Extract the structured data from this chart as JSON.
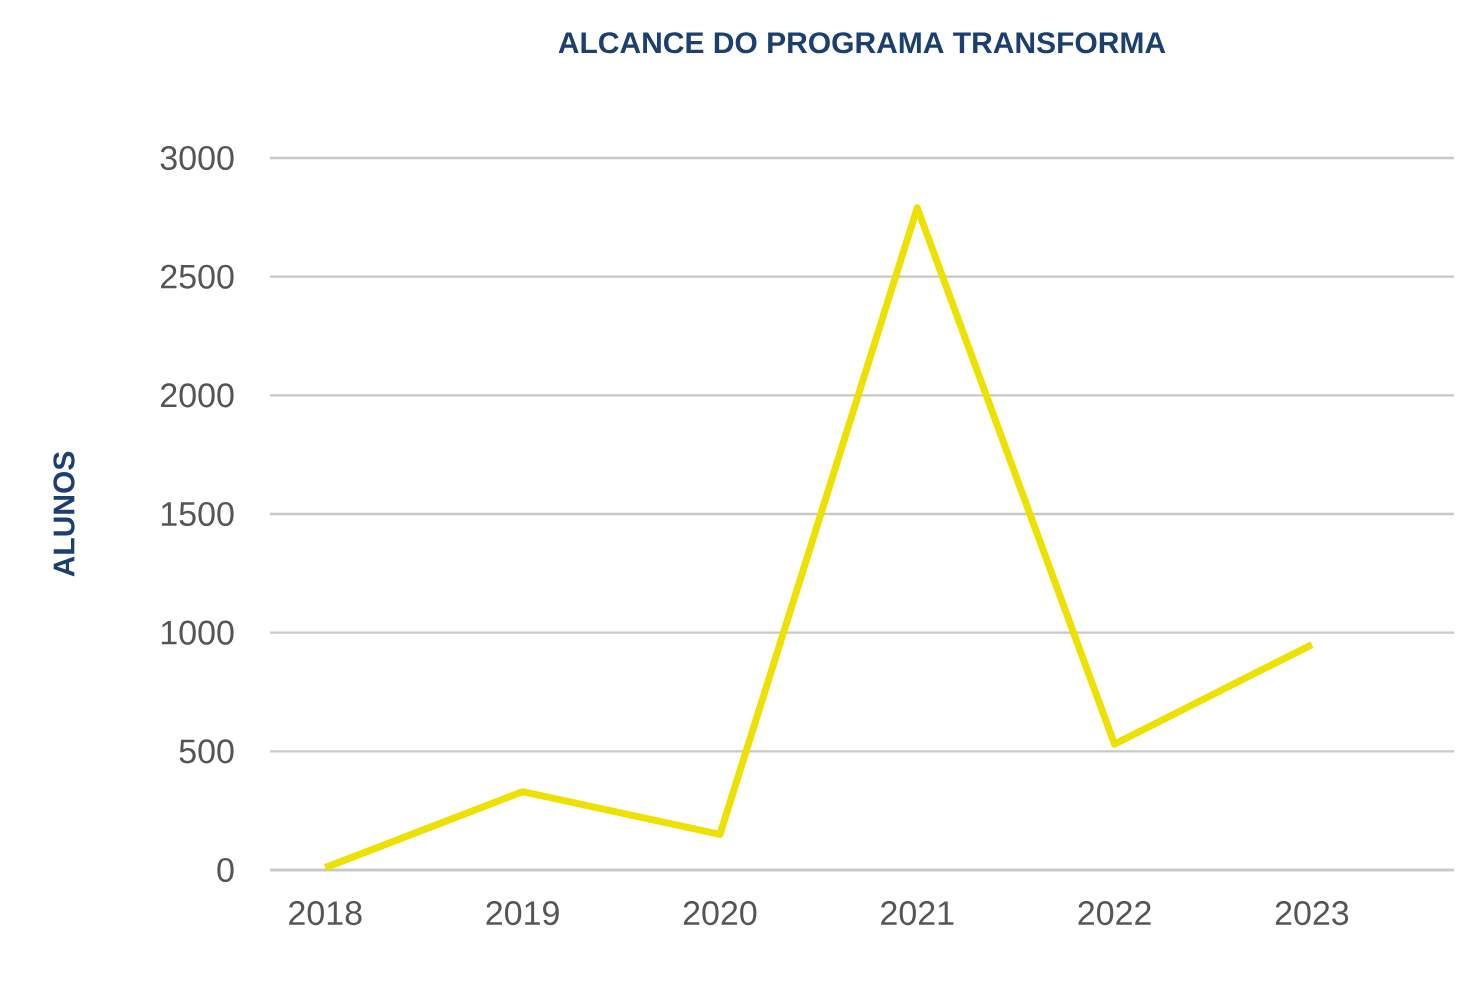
{
  "chart_data": {
    "type": "line",
    "title": "ALCANCE DO PROGRAMA TRANSFORMA",
    "ylabel": "ALUNOS",
    "categories": [
      "2018",
      "2019",
      "2020",
      "2021",
      "2022",
      "2023"
    ],
    "series": [
      {
        "color": "#ece100",
        "values": [
          10,
          330,
          150,
          2790,
          530,
          950
        ]
      }
    ],
    "ylim": [
      0,
      3000
    ],
    "yticks": [
      0,
      500,
      1000,
      1500,
      2000,
      2500,
      3000
    ],
    "grid": "y",
    "legend": false,
    "marker": "none",
    "line_style": "solid"
  }
}
